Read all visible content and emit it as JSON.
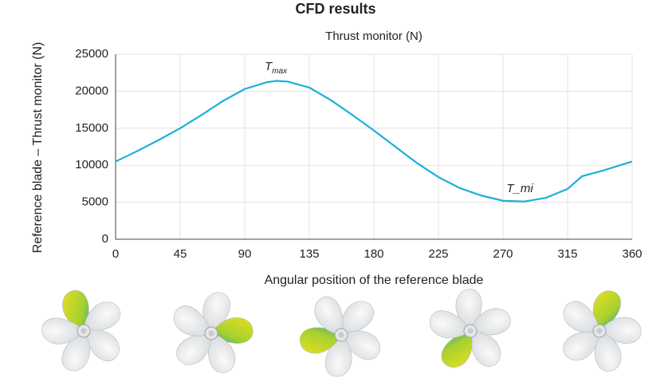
{
  "chart_data": {
    "type": "line",
    "title": "CFD results",
    "subtitle": "Thrust monitor (N)",
    "x_label": "Angular position of the reference blade",
    "y_label": "Reference blade – Thrust monitor (N)",
    "x": [
      0,
      15,
      30,
      45,
      60,
      75,
      90,
      105,
      112,
      120,
      135,
      150,
      165,
      180,
      195,
      210,
      225,
      240,
      255,
      270,
      285,
      300,
      315,
      325,
      340,
      360
    ],
    "series": [
      {
        "name": "Thrust monitor (N)",
        "color": "#1ab0d8",
        "values": [
          10500,
          11900,
          13400,
          15000,
          16800,
          18700,
          20300,
          21200,
          21400,
          21300,
          20500,
          18800,
          16800,
          14700,
          12500,
          10300,
          8400,
          6900,
          5900,
          5200,
          5100,
          5600,
          6800,
          8500,
          9300,
          10500
        ]
      }
    ],
    "xlim": [
      0,
      360
    ],
    "xticks": [
      0,
      45,
      90,
      135,
      180,
      225,
      270,
      315,
      360
    ],
    "ylim": [
      0,
      25000
    ],
    "yticks": [
      0,
      5000,
      10000,
      15000,
      20000,
      25000
    ],
    "grid": true,
    "annotations": [
      {
        "text": "T",
        "sub": "max"
      },
      {
        "text": "T_mi"
      }
    ]
  }
}
